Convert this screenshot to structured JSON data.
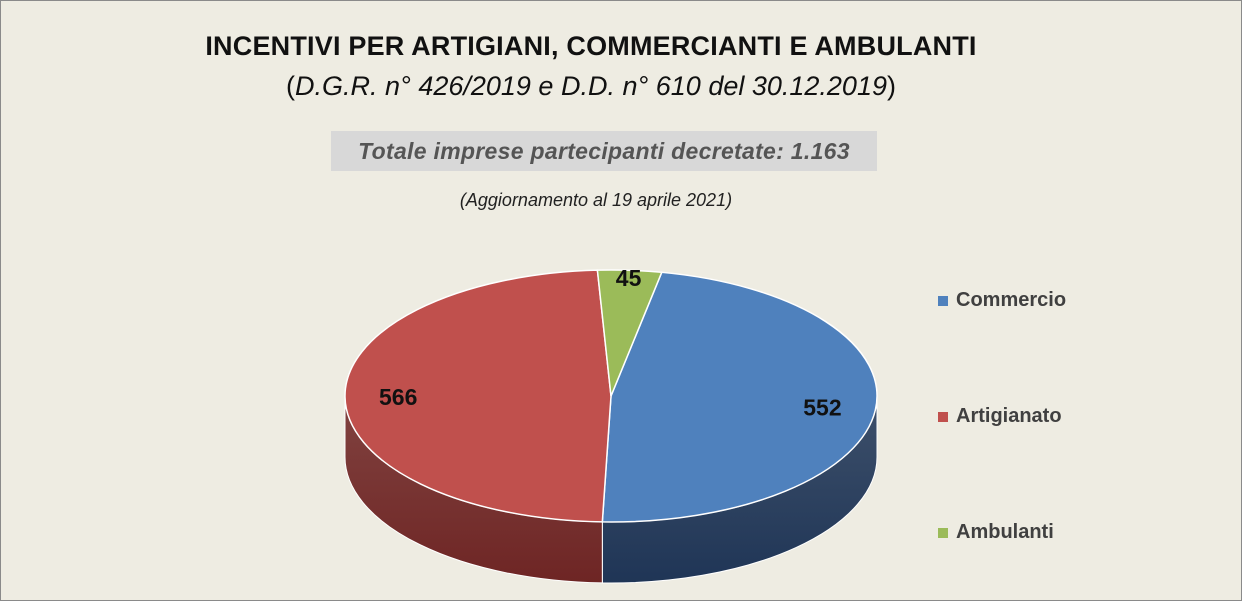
{
  "header": {
    "title": "INCENTIVI PER ARTIGIANI, COMMERCIANTI E AMBULANTI",
    "subtitle_open": "(",
    "subtitle_italic": "D.G.R. n° 426/2019 e D.D. n° 610 del 30.12.2019",
    "subtitle_close": ")",
    "total": "Totale imprese partecipanti decretate: 1.163",
    "update": "(Aggiornamento al 19 aprile 2021)"
  },
  "chart_data": {
    "type": "pie",
    "style": "3d",
    "categories": [
      "Commercio",
      "Artigianato",
      "Ambulanti"
    ],
    "values": [
      552,
      566,
      45
    ],
    "colors": [
      "#4f81bd",
      "#c0504d",
      "#9bbb59"
    ],
    "side_colors": [
      "#1f3556",
      "#6e2524",
      "#5a7330"
    ],
    "legend": {
      "position": "right"
    }
  }
}
